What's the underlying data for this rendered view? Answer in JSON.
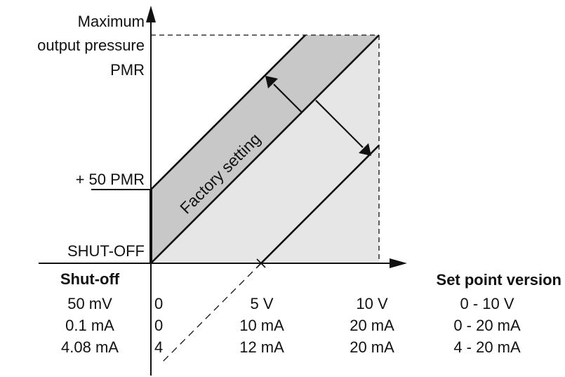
{
  "colors": {
    "line": "#111111",
    "band_dark": "#c8c8c8",
    "band_light": "#e6e6e6",
    "background": "#ffffff"
  },
  "y_axis": {
    "title_lines": [
      "Maximum",
      "output pressure",
      "PMR"
    ],
    "level_mid": "+ 50 PMR",
    "level_low": "SHUT-OFF"
  },
  "x_axis": {
    "title": "Set point version"
  },
  "band": {
    "label": "Factory setting"
  },
  "table": {
    "shutoff_header": "Shut-off",
    "rows": [
      {
        "shutoff": "50 mV",
        "start": "0",
        "mid": "5 V",
        "max": "10 V",
        "range": "0 - 10 V"
      },
      {
        "shutoff": "0.1 mA",
        "start": "0",
        "mid": "10 mA",
        "max": "20 mA",
        "range": "0 - 20 mA"
      },
      {
        "shutoff": "4.08 mA",
        "start": "4",
        "mid": "12 mA",
        "max": "20 mA",
        "range": "4 - 20 mA"
      }
    ]
  }
}
